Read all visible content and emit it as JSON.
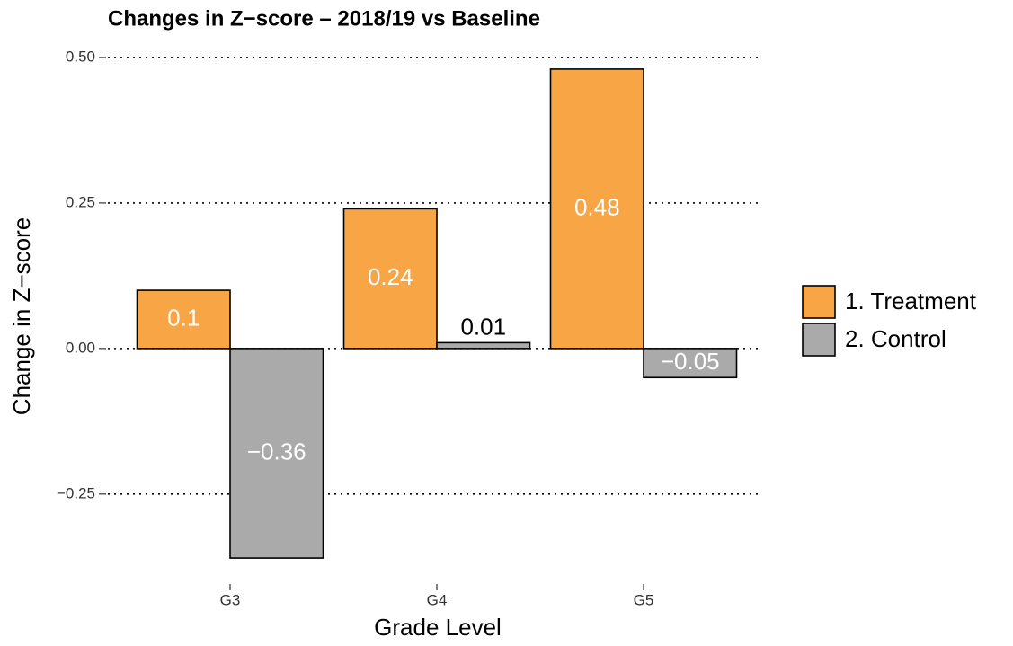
{
  "chart_data": {
    "type": "bar",
    "title": "Changes in Z−score – 2018/19 vs Baseline",
    "x_label": "Grade Level",
    "y_label": "Change in Z−score",
    "categories": [
      "G3",
      "G4",
      "G5"
    ],
    "series": [
      {
        "name": "1. Treatment",
        "color": "#f8a645",
        "values": [
          0.1,
          0.24,
          0.48
        ],
        "value_labels": [
          "0.1",
          "0.24",
          "0.48"
        ]
      },
      {
        "name": "2. Control",
        "color": "#aaaaaa",
        "values": [
          -0.36,
          0.01,
          -0.05
        ],
        "value_labels": [
          "−0.36",
          "0.01",
          "−0.05"
        ]
      }
    ],
    "ylim": [
      -0.4,
      0.52
    ],
    "yticks": [
      {
        "value": -0.25,
        "label": "−0.25"
      },
      {
        "value": 0,
        "label": "0.00"
      },
      {
        "value": 0.25,
        "label": "0.25"
      },
      {
        "value": 0.5,
        "label": "0.50"
      }
    ],
    "grid": true,
    "legend": "right"
  }
}
